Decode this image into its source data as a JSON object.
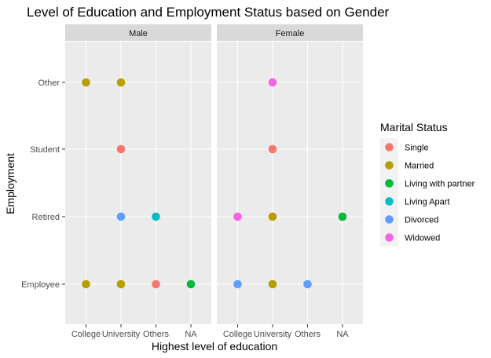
{
  "chart_data": {
    "type": "scatter",
    "title": "Level of Education and Employment Status based on Gender",
    "xlabel": "Highest level of education",
    "ylabel": "Employment",
    "x_categories": [
      "College",
      "University",
      "Others",
      "NA"
    ],
    "y_categories": [
      "Employee",
      "Retired",
      "Student",
      "Other"
    ],
    "legend": {
      "title": "Marital Status",
      "position": "right",
      "entries": [
        {
          "label": "Single",
          "color": "#F8766D"
        },
        {
          "label": "Married",
          "color": "#B79F00"
        },
        {
          "label": "Living with partner",
          "color": "#00BA38"
        },
        {
          "label": "Living Apart",
          "color": "#00BFC4"
        },
        {
          "label": "Divorced",
          "color": "#619CFF"
        },
        {
          "label": "Widowed",
          "color": "#F564E3"
        }
      ]
    },
    "facets": [
      {
        "label": "Male",
        "points": [
          {
            "x": "College",
            "y": "Other",
            "status": "Married"
          },
          {
            "x": "University",
            "y": "Other",
            "status": "Married"
          },
          {
            "x": "University",
            "y": "Student",
            "status": "Single"
          },
          {
            "x": "University",
            "y": "Retired",
            "status": "Divorced"
          },
          {
            "x": "Others",
            "y": "Retired",
            "status": "Living Apart"
          },
          {
            "x": "College",
            "y": "Employee",
            "status": "Married"
          },
          {
            "x": "University",
            "y": "Employee",
            "status": "Married"
          },
          {
            "x": "Others",
            "y": "Employee",
            "status": "Single"
          },
          {
            "x": "NA",
            "y": "Employee",
            "status": "Living with partner"
          }
        ]
      },
      {
        "label": "Female",
        "points": [
          {
            "x": "University",
            "y": "Other",
            "status": "Widowed"
          },
          {
            "x": "University",
            "y": "Student",
            "status": "Single"
          },
          {
            "x": "College",
            "y": "Retired",
            "status": "Widowed"
          },
          {
            "x": "University",
            "y": "Retired",
            "status": "Married"
          },
          {
            "x": "NA",
            "y": "Retired",
            "status": "Living with partner"
          },
          {
            "x": "College",
            "y": "Employee",
            "status": "Divorced"
          },
          {
            "x": "University",
            "y": "Employee",
            "status": "Married"
          },
          {
            "x": "Others",
            "y": "Employee",
            "status": "Divorced"
          }
        ]
      }
    ],
    "grid": true,
    "colors": {
      "panel_background": "#EBEBEB",
      "strip_background": "#D9D9D9",
      "grid": "#FFFFFF",
      "text_dark": "#000000",
      "text_axis": "#4D4D4D"
    }
  }
}
